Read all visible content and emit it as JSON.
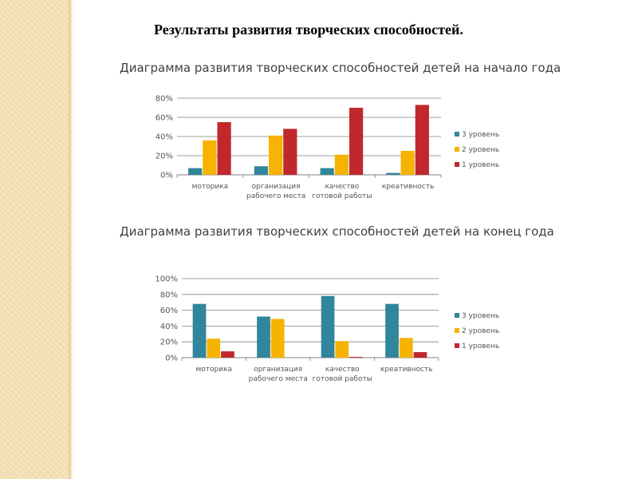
{
  "slide": {
    "title": "Результаты развития творческих способностей."
  },
  "colors": {
    "series": [
      "#31859c",
      "#f6b300",
      "#c0282c"
    ],
    "grid": "#808080",
    "side_strip": "#f3dfb3"
  },
  "chart_data": [
    {
      "type": "bar",
      "title": "Диаграмма развития творческих способностей детей на начало года",
      "categories": [
        [
          "моторика"
        ],
        [
          "организация",
          "рабочего места"
        ],
        [
          "качество",
          "готовой работы"
        ],
        [
          "креативность"
        ]
      ],
      "series": [
        {
          "name": "3 уровень",
          "values": [
            7,
            9,
            7,
            2
          ]
        },
        {
          "name": "2 уровень",
          "values": [
            36,
            41,
            21,
            25
          ]
        },
        {
          "name": "1 уровень",
          "values": [
            55,
            48,
            70,
            73
          ]
        }
      ],
      "ylim": [
        0,
        80
      ],
      "yticks": [
        "0%",
        "20%",
        "40%",
        "60%",
        "80%"
      ],
      "ytick_values": [
        0,
        20,
        40,
        60,
        80
      ],
      "grid": true,
      "legend": "right"
    },
    {
      "type": "bar",
      "title": "Диаграмма развития творческих способностей детей на конец  года",
      "categories": [
        [
          "моторика"
        ],
        [
          "организация",
          "рабочего места"
        ],
        [
          "качество",
          "готовой работы"
        ],
        [
          "креативность"
        ]
      ],
      "series": [
        {
          "name": "3 уровень",
          "values": [
            68,
            52,
            78,
            68
          ]
        },
        {
          "name": "2 уровень",
          "values": [
            24,
            49,
            21,
            25
          ]
        },
        {
          "name": "1 уровень",
          "values": [
            8,
            0,
            1,
            7
          ]
        }
      ],
      "ylim": [
        0,
        100
      ],
      "yticks": [
        "0%",
        "20%",
        "40%",
        "60%",
        "80%",
        "100%"
      ],
      "ytick_values": [
        0,
        20,
        40,
        60,
        80,
        100
      ],
      "grid": true,
      "legend": "right"
    }
  ]
}
